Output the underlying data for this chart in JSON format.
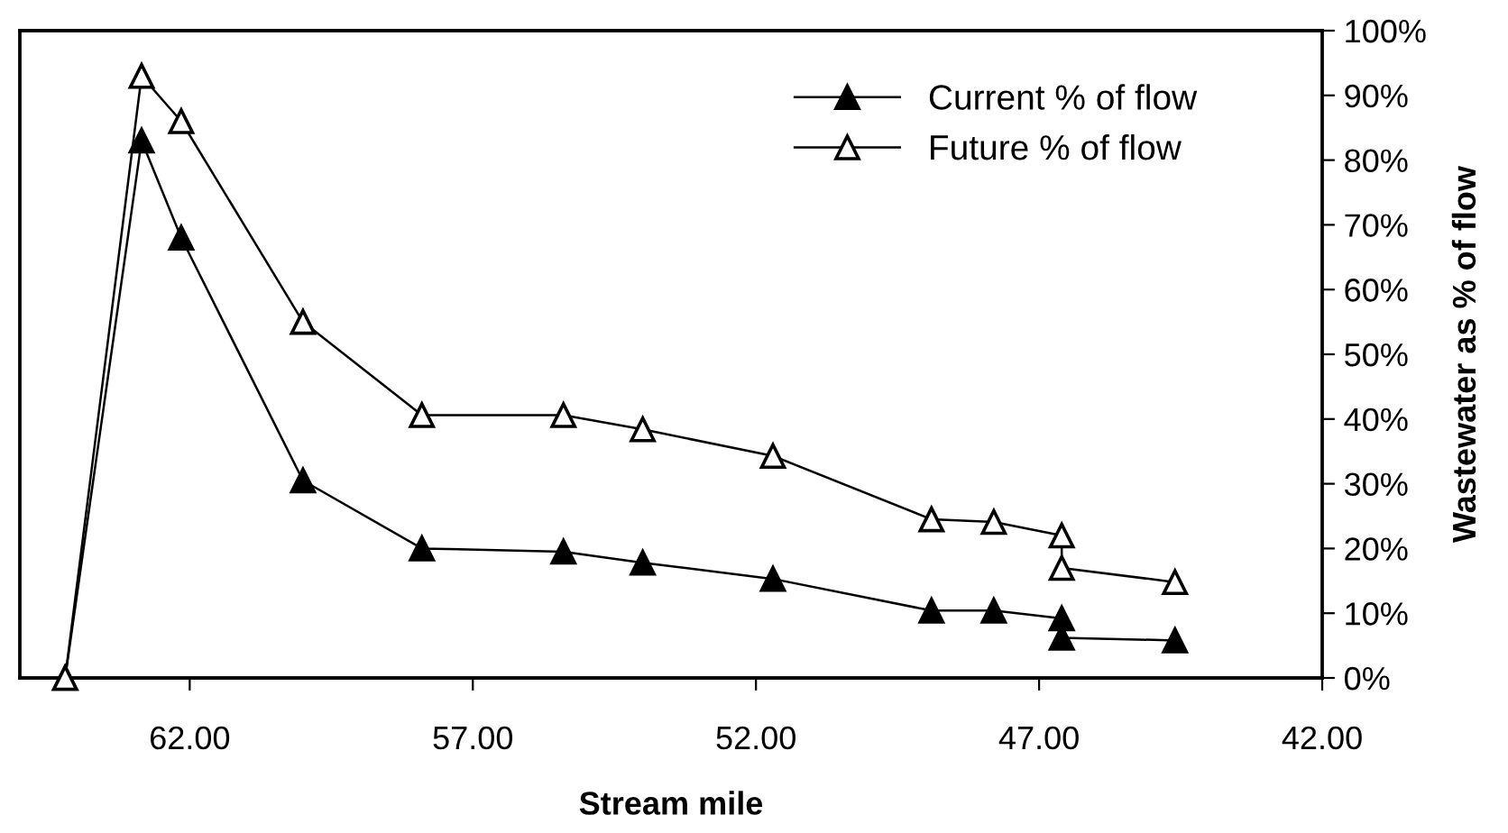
{
  "chart_data": {
    "type": "line",
    "xlabel": "Stream mile",
    "y2label": "Wastewater as % of flow",
    "xlim": [
      65,
      42
    ],
    "xticks": [
      {
        "value": 62,
        "label": "62.00"
      },
      {
        "value": 57,
        "label": "57.00"
      },
      {
        "value": 52,
        "label": "52.00"
      },
      {
        "value": 47,
        "label": "47.00"
      },
      {
        "value": 42,
        "label": "42.00"
      }
    ],
    "y2lim": [
      0,
      100
    ],
    "y2ticks": [
      {
        "value": 0,
        "label": "0%"
      },
      {
        "value": 10,
        "label": "10%"
      },
      {
        "value": 20,
        "label": "20%"
      },
      {
        "value": 30,
        "label": "30%"
      },
      {
        "value": 40,
        "label": "40%"
      },
      {
        "value": 50,
        "label": "50%"
      },
      {
        "value": 60,
        "label": "60%"
      },
      {
        "value": 70,
        "label": "70%"
      },
      {
        "value": 80,
        "label": "80%"
      },
      {
        "value": 90,
        "label": "90%"
      },
      {
        "value": 100,
        "label": "100%"
      }
    ],
    "x": [
      64.2,
      62.85,
      62.15,
      60.0,
      57.9,
      55.4,
      54.0,
      51.7,
      48.9,
      47.8,
      46.6,
      46.6,
      44.6
    ],
    "legend": "top right",
    "grid": false,
    "line_style": "solid",
    "series": [
      {
        "name": "Current % of flow",
        "color": "#000000",
        "marker": "triangle",
        "axis": "y2",
        "values": [
          0,
          83,
          68,
          30.5,
          20,
          19.5,
          17.8,
          15.3,
          10.4,
          10.4,
          9.2,
          6.2,
          5.8
        ]
      },
      {
        "name": "Future % of flow",
        "color": "#000000",
        "marker": "triangle",
        "axis": "y2",
        "values": [
          0,
          93,
          86,
          55,
          40.6,
          40.6,
          38.4,
          34.3,
          24.5,
          24.1,
          22,
          17,
          14.8
        ]
      }
    ]
  }
}
